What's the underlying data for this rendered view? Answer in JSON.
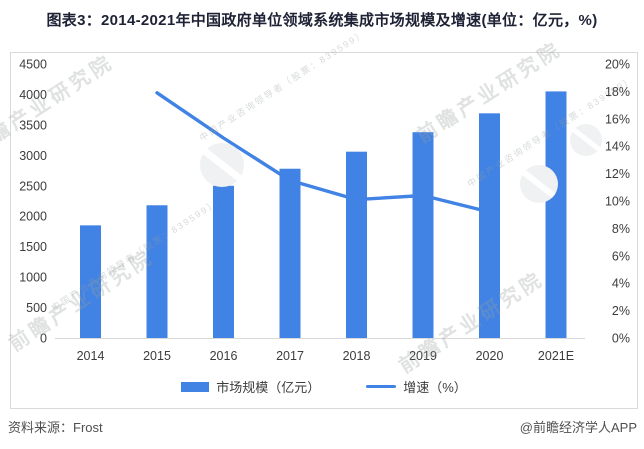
{
  "title": "图表3：2014-2021年中国政府单位领域系统集成市场规模及增速(单位：亿元，%)",
  "footer": {
    "source": "资料来源：Frost",
    "credit": "@前瞻经济学人APP"
  },
  "legend": {
    "bars_label": "市场规模（亿元）",
    "line_label": "增速（%）"
  },
  "watermarks": {
    "brand": "前瞻产业研究院",
    "sub": "中国产业咨询领导者（股票：839599）"
  },
  "colors": {
    "bar": "#4183E5",
    "line": "#4183E5",
    "axis_text": "#3c3c3c",
    "baseline": "#d9d9d9",
    "frame_border": "#d9d9d9",
    "title_text": "#1e2235",
    "footer_text": "#4f4f4f"
  },
  "chart_data": {
    "type": "bar+line",
    "title": "2014-2021年中国政府单位领域系统集成市场规模及增速",
    "categories": [
      "2014",
      "2015",
      "2016",
      "2017",
      "2018",
      "2019",
      "2020",
      "2021E"
    ],
    "series": [
      {
        "name": "市场规模（亿元）",
        "type": "bar",
        "axis": "left",
        "values": [
          1850,
          2180,
          2500,
          2780,
          3060,
          3380,
          3690,
          4050
        ]
      },
      {
        "name": "增速（%）",
        "type": "line",
        "axis": "right",
        "x": [
          "2015",
          "2016",
          "2017",
          "2018",
          "2019",
          "2020"
        ],
        "values": [
          17.9,
          14.6,
          11.5,
          10.1,
          10.4,
          9.2
        ]
      }
    ],
    "y_left": {
      "min": 0,
      "max": 4500,
      "step": 500
    },
    "y_right": {
      "min": 0,
      "max": 20,
      "step": 2,
      "suffix": "%"
    },
    "grid": false,
    "legend_position": "bottom"
  }
}
